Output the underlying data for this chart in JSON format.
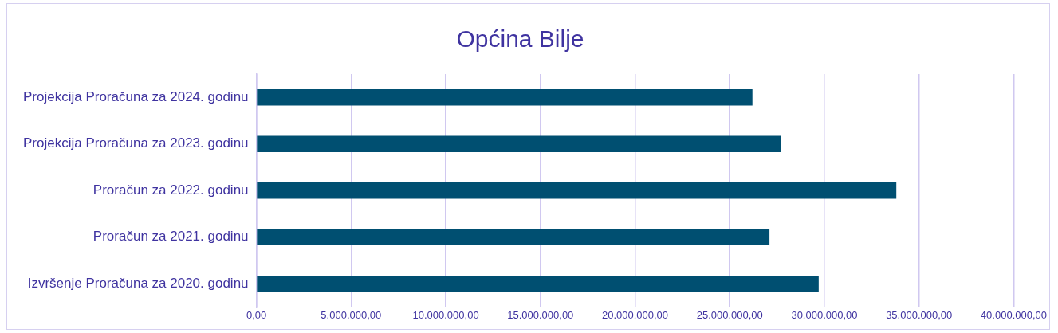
{
  "chart_data": {
    "type": "bar",
    "orientation": "horizontal",
    "title": "Općina Bilje",
    "categories": [
      "Projekcija Proračuna za 2024. godinu",
      "Projekcija Proračuna za 2023. godinu",
      "Proračun za 2022. godinu",
      "Proračun za 2021. godinu",
      "Izvršenje Proračuna za 2020. godinu"
    ],
    "values": [
      26200000,
      27700000,
      33800000,
      27100000,
      29700000
    ],
    "color": "#004f71",
    "xlim": [
      0,
      40000000
    ],
    "xticks": [
      {
        "value": 0,
        "label": "0,00"
      },
      {
        "value": 5000000,
        "label": "5.000.000,00"
      },
      {
        "value": 10000000,
        "label": "10.000.000,00"
      },
      {
        "value": 15000000,
        "label": "15.000.000,00"
      },
      {
        "value": 20000000,
        "label": "20.000.000,00"
      },
      {
        "value": 25000000,
        "label": "25.000.000,00"
      },
      {
        "value": 30000000,
        "label": "30.000.000,00"
      },
      {
        "value": 35000000,
        "label": "35.000.000,00"
      },
      {
        "value": 40000000,
        "label": "40.000.000,00"
      }
    ],
    "grid": "x"
  }
}
